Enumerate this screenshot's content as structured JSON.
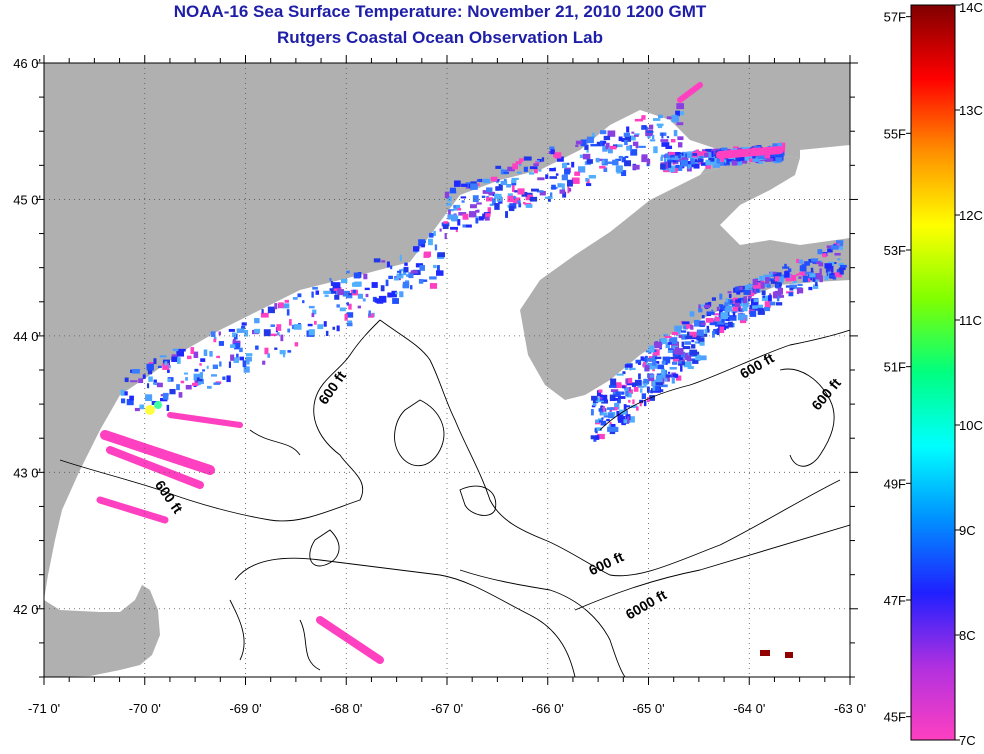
{
  "header": {
    "title_line1": "NOAA-16 Sea Surface Temperature:  November 21, 2010 1200 GMT",
    "title_line2": "Rutgers Coastal Ocean Observation Lab"
  },
  "map": {
    "lon_range": [
      -71.0,
      -63.0
    ],
    "lat_range": [
      41.5,
      46.0
    ],
    "lon_ticks": [
      {
        "value": -71,
        "label": "-71 0'"
      },
      {
        "value": -70,
        "label": "-70 0'"
      },
      {
        "value": -69,
        "label": "-69 0'"
      },
      {
        "value": -68,
        "label": "-68 0'"
      },
      {
        "value": -67,
        "label": "-67 0'"
      },
      {
        "value": -66,
        "label": "-66 0'"
      },
      {
        "value": -65,
        "label": "-65 0'"
      },
      {
        "value": -64,
        "label": "-64 0'"
      },
      {
        "value": -63,
        "label": "-63 0'"
      }
    ],
    "lat_ticks": [
      {
        "value": 46,
        "label": "46 0'"
      },
      {
        "value": 45,
        "label": "45 0'"
      },
      {
        "value": 44,
        "label": "44 0'"
      },
      {
        "value": 43,
        "label": "43 0'"
      },
      {
        "value": 42,
        "label": "42 0'"
      }
    ],
    "contour_labels": [
      {
        "text": "600 ft",
        "lon": -68.1,
        "lat": 43.6,
        "angle": -55
      },
      {
        "text": "600 ft",
        "lon": -69.8,
        "lat": 42.8,
        "angle": 55
      },
      {
        "text": "600 ft",
        "lon": -65.4,
        "lat": 42.3,
        "angle": -25
      },
      {
        "text": "6000 ft",
        "lon": -65.0,
        "lat": 42.0,
        "angle": -30
      },
      {
        "text": "600 ft",
        "lon": -63.9,
        "lat": 43.75,
        "angle": -30
      },
      {
        "text": "600 ft",
        "lon": -63.2,
        "lat": 43.55,
        "angle": -50
      }
    ],
    "land_color": "#b0b0b0",
    "ocean_color": "#ffffff"
  },
  "colorbar": {
    "celsius_ticks": [
      {
        "value": 14,
        "label": "14C"
      },
      {
        "value": 13,
        "label": "13C"
      },
      {
        "value": 12,
        "label": "12C"
      },
      {
        "value": 11,
        "label": "11C"
      },
      {
        "value": 10,
        "label": "10C"
      },
      {
        "value": 9,
        "label": "9C"
      },
      {
        "value": 8,
        "label": "8C"
      },
      {
        "value": 7,
        "label": "7C"
      }
    ],
    "fahrenheit_ticks": [
      {
        "value": 57,
        "label": "57F"
      },
      {
        "value": 55,
        "label": "55F"
      },
      {
        "value": 53,
        "label": "53F"
      },
      {
        "value": 51,
        "label": "51F"
      },
      {
        "value": 49,
        "label": "49F"
      },
      {
        "value": 47,
        "label": "47F"
      },
      {
        "value": 45,
        "label": "45F"
      }
    ],
    "range_c": [
      7,
      14
    ],
    "colors": [
      "#ff40c0",
      "#b030e0",
      "#2020ff",
      "#0090ff",
      "#00ffff",
      "#00ff80",
      "#80ff00",
      "#ffff00",
      "#ff9000",
      "#ff0000",
      "#800000"
    ]
  }
}
